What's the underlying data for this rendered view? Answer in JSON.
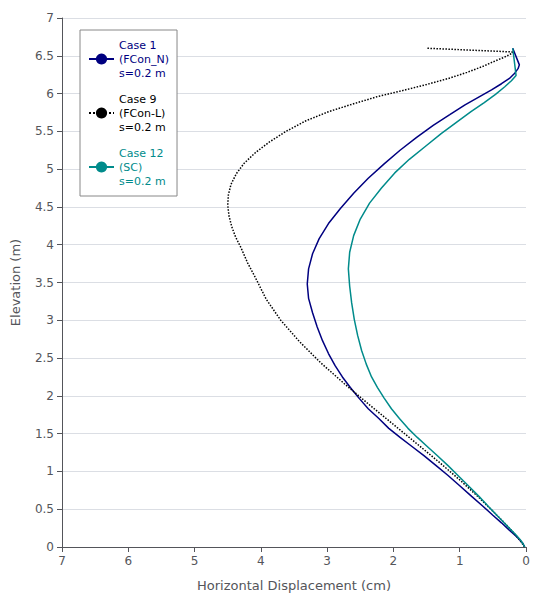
{
  "chart_data": {
    "type": "line",
    "xlabel": "Horizontal Displacement (cm)",
    "ylabel": "Elevation (m)",
    "xlim": [
      7,
      0
    ],
    "ylim": [
      0,
      7
    ],
    "xticks": [
      7,
      6,
      5,
      4,
      3,
      2,
      1,
      0
    ],
    "yticks": [
      0,
      0.5,
      1,
      1.5,
      2,
      2.5,
      3,
      3.5,
      4,
      4.5,
      5,
      5.5,
      6,
      6.5,
      7
    ],
    "grid": "y",
    "legend": "upper left",
    "series": [
      {
        "name": "Case 1\n(FCon_N)\ns=0.2 m",
        "color": "#000080",
        "line_style": "solid",
        "x": [
          0.02,
          0.05,
          0.1,
          0.17,
          0.26,
          0.37,
          0.5,
          0.65,
          0.82,
          1.0,
          1.18,
          1.36,
          1.54,
          1.72,
          1.9,
          2.07,
          2.22,
          2.38,
          2.52,
          2.65,
          2.77,
          2.88,
          2.98,
          3.07,
          3.15,
          3.22,
          3.28,
          3.3,
          3.28,
          3.22,
          3.12,
          2.98,
          2.8,
          2.6,
          2.38,
          2.14,
          1.9,
          1.65,
          1.4,
          1.15,
          0.92,
          0.7,
          0.52,
          0.37,
          0.25,
          0.17,
          0.12,
          0.1,
          0.2
        ],
        "values": [
          0.0,
          0.05,
          0.1,
          0.16,
          0.23,
          0.32,
          0.42,
          0.54,
          0.67,
          0.81,
          0.95,
          1.08,
          1.21,
          1.33,
          1.45,
          1.57,
          1.7,
          1.83,
          1.97,
          2.11,
          2.25,
          2.4,
          2.56,
          2.73,
          2.91,
          3.1,
          3.29,
          3.48,
          3.68,
          3.88,
          4.08,
          4.28,
          4.48,
          4.68,
          4.88,
          5.07,
          5.25,
          5.42,
          5.58,
          5.72,
          5.85,
          5.96,
          6.05,
          6.13,
          6.2,
          6.27,
          6.33,
          6.38,
          6.6
        ]
      },
      {
        "name": "Case 9\n(FCon-L)\ns=0.2 m",
        "color": "#000000",
        "line_style": "dotted",
        "x": [
          0.02,
          0.06,
          0.12,
          0.22,
          0.36,
          0.53,
          0.74,
          0.99,
          1.28,
          1.61,
          1.97,
          2.36,
          2.74,
          3.1,
          3.42,
          3.7,
          3.92,
          4.08,
          4.2,
          4.3,
          4.38,
          4.44,
          4.48,
          4.5,
          4.49,
          4.45,
          4.37,
          4.25,
          4.08,
          3.87,
          3.62,
          3.32,
          2.98,
          2.62,
          2.24,
          1.86,
          1.5,
          1.17,
          0.89,
          0.65,
          0.47,
          0.33,
          0.24,
          0.18,
          1.5
        ],
        "values": [
          0.0,
          0.05,
          0.12,
          0.22,
          0.35,
          0.5,
          0.68,
          0.88,
          1.1,
          1.34,
          1.6,
          1.88,
          2.16,
          2.44,
          2.72,
          3.0,
          3.28,
          3.56,
          3.76,
          3.96,
          4.1,
          4.24,
          4.38,
          4.52,
          4.66,
          4.8,
          4.94,
          5.08,
          5.22,
          5.36,
          5.5,
          5.64,
          5.76,
          5.86,
          5.96,
          6.04,
          6.12,
          6.2,
          6.28,
          6.36,
          6.43,
          6.48,
          6.52,
          6.55,
          6.6
        ]
      },
      {
        "name": "Case 12\n(SC)\ns=0.2 m",
        "color": "#008B8B",
        "line_style": "solid",
        "x": [
          0.02,
          0.05,
          0.09,
          0.15,
          0.23,
          0.33,
          0.44,
          0.57,
          0.71,
          0.87,
          1.03,
          1.18,
          1.34,
          1.49,
          1.64,
          1.78,
          1.91,
          2.03,
          2.14,
          2.24,
          2.33,
          2.41,
          2.48,
          2.54,
          2.59,
          2.63,
          2.66,
          2.68,
          2.66,
          2.6,
          2.5,
          2.36,
          2.18,
          1.98,
          1.76,
          1.52,
          1.28,
          1.05,
          0.83,
          0.63,
          0.46,
          0.32,
          0.22,
          0.15,
          0.2
        ],
        "values": [
          0.0,
          0.05,
          0.1,
          0.16,
          0.23,
          0.32,
          0.42,
          0.54,
          0.67,
          0.81,
          0.95,
          1.08,
          1.21,
          1.33,
          1.45,
          1.57,
          1.7,
          1.83,
          1.97,
          2.11,
          2.25,
          2.42,
          2.6,
          2.8,
          3.01,
          3.23,
          3.45,
          3.68,
          3.9,
          4.12,
          4.34,
          4.55,
          4.75,
          4.95,
          5.13,
          5.3,
          5.47,
          5.62,
          5.76,
          5.88,
          5.99,
          6.09,
          6.17,
          6.24,
          6.6
        ]
      }
    ]
  }
}
